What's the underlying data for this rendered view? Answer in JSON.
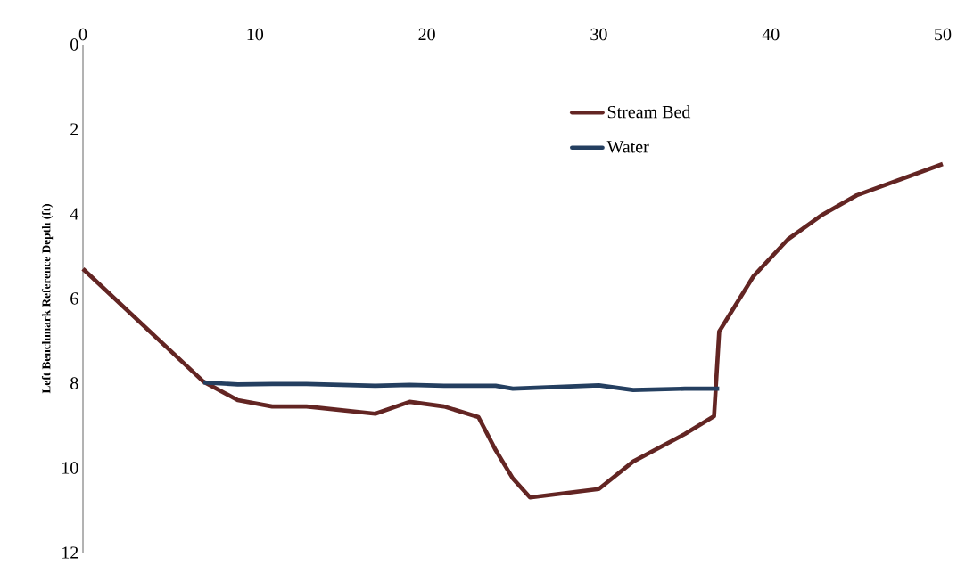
{
  "chart_data": {
    "type": "line",
    "ylabel": "Left Benchmark Reference Depth (ft)",
    "xlim": [
      0,
      50
    ],
    "ylim": [
      12,
      0
    ],
    "xticks": [
      0,
      10,
      20,
      30,
      40,
      50
    ],
    "yticks": [
      0,
      2,
      4,
      6,
      8,
      10,
      12
    ],
    "legend": "top right",
    "marker": "none",
    "line_style": "solid",
    "series": [
      {
        "name": "Stream Bed",
        "color": "#632523",
        "x": [
          0,
          7,
          9,
          11,
          13,
          17,
          19,
          21,
          23,
          24,
          25,
          26,
          30,
          32,
          35,
          36.7,
          37,
          39,
          41,
          43,
          45,
          50
        ],
        "values": [
          5.3,
          7.96,
          8.4,
          8.55,
          8.55,
          8.72,
          8.44,
          8.55,
          8.8,
          9.58,
          10.25,
          10.7,
          10.5,
          9.85,
          9.2,
          8.78,
          6.78,
          5.47,
          4.6,
          4.02,
          3.56,
          2.82
        ]
      },
      {
        "name": "Water",
        "color": "#243F60",
        "x": [
          7,
          9,
          11,
          13,
          17,
          19,
          21,
          24,
          25,
          30,
          32,
          35,
          37
        ],
        "values": [
          7.98,
          8.03,
          8.02,
          8.02,
          8.06,
          8.04,
          8.06,
          8.06,
          8.13,
          8.05,
          8.16,
          8.13,
          8.13
        ]
      }
    ]
  }
}
